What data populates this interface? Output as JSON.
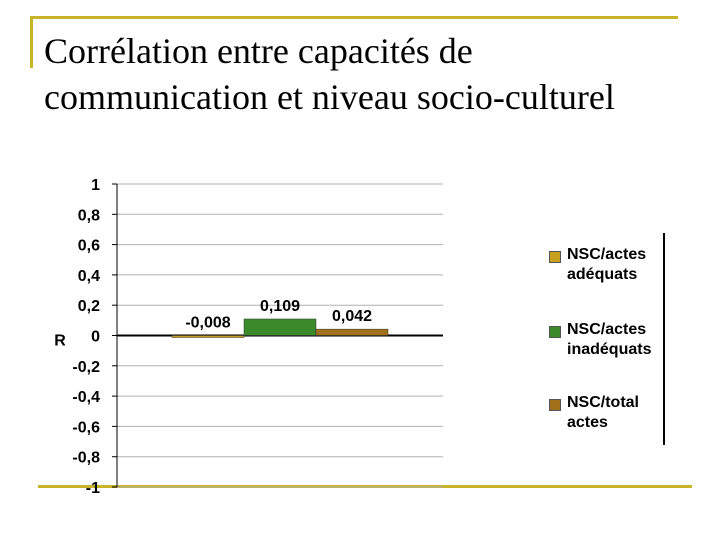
{
  "slide": {
    "title_line1": "Corrélation entre capacités de",
    "title_line2": "communication et niveau socio-culturel"
  },
  "colors": {
    "frame": "#c8b428",
    "series": [
      "#c8a020",
      "#3a8a2a",
      "#a0701a"
    ]
  },
  "chart_data": {
    "type": "bar",
    "ylabel": "R",
    "ylim": [
      -1,
      1
    ],
    "yticks": [
      1,
      0.8,
      0.6,
      0.4,
      0.2,
      0,
      -0.2,
      -0.4,
      -0.6,
      -0.8,
      -1
    ],
    "ytick_labels": [
      "1",
      "0,8",
      "0,6",
      "0,4",
      "0,2",
      "0",
      "-0,2",
      "-0,4",
      "-0,6",
      "-0,8",
      "-1"
    ],
    "grid": true,
    "legend_position": "right",
    "series": [
      {
        "name": "NSC/actes adéquats",
        "value": -0.008,
        "label": "-0,008"
      },
      {
        "name": "NSC/actes inadéquats",
        "value": 0.109,
        "label": "0,109"
      },
      {
        "name": "NSC/total actes",
        "value": 0.042,
        "label": "0,042"
      }
    ]
  }
}
